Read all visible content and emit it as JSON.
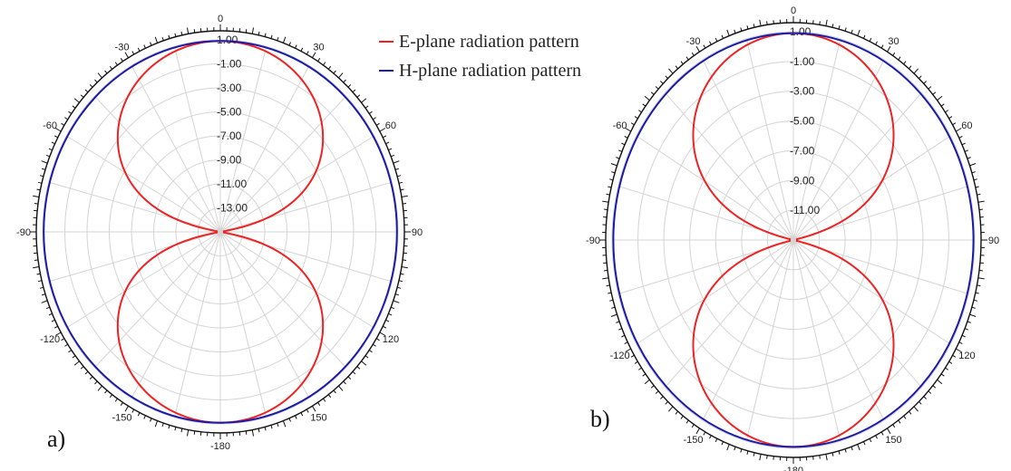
{
  "colors": {
    "e_plane": "#ee2222",
    "h_plane": "#1a1aa8",
    "grid": "#d4d4d4",
    "outer_ring": "#111111",
    "tick_text": "#222222"
  },
  "legend": {
    "items": [
      {
        "label": "E-plane radiation pattern",
        "color": "#ee2222"
      },
      {
        "label": "H-plane radiation pattern",
        "color": "#1a1aa8"
      }
    ]
  },
  "chart_data": [
    {
      "type": "polar",
      "panel_label": "a)",
      "angle_labels": [
        "0",
        "30",
        "60",
        "90",
        "120",
        "150",
        "-180",
        "-150",
        "-120",
        "-90",
        "-60",
        "-30"
      ],
      "radial_tick_labels": [
        "1.00",
        "-1.00",
        "-3.00",
        "-5.00",
        "-7.00",
        "-9.00",
        "-11.00",
        "-13.00"
      ],
      "rlim": [
        -15,
        1
      ],
      "grid": true,
      "series": [
        {
          "name": "E-plane radiation pattern",
          "pattern": "cos(theta)",
          "peak_db": 0.9
        },
        {
          "name": "H-plane radiation pattern",
          "pattern": "omnidirectional",
          "level_db": 0.9
        }
      ]
    },
    {
      "type": "polar",
      "panel_label": "b)",
      "angle_labels": [
        "0",
        "30",
        "60",
        "90",
        "120",
        "150",
        "-180",
        "-150",
        "-120",
        "-90",
        "-60",
        "-30"
      ],
      "radial_tick_labels": [
        "1.00",
        "-1.00",
        "-3.00",
        "-5.00",
        "-7.00",
        "-9.00",
        "-11.00"
      ],
      "rlim": [
        -13,
        1
      ],
      "grid": true,
      "series": [
        {
          "name": "E-plane radiation pattern",
          "pattern": "cos(theta)",
          "peak_db": 0.9
        },
        {
          "name": "H-plane radiation pattern",
          "pattern": "omnidirectional",
          "level_db": 0.9
        }
      ]
    }
  ]
}
